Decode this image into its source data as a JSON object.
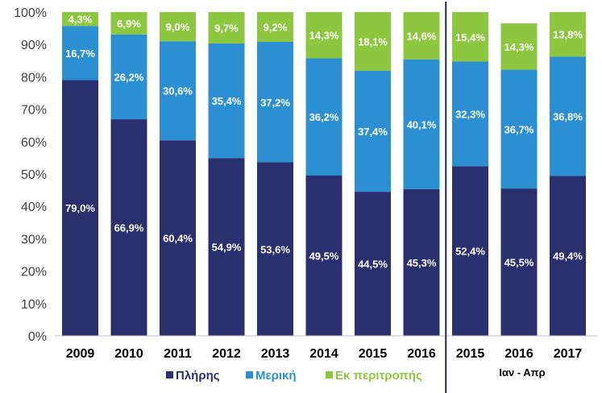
{
  "chart_data": {
    "type": "bar",
    "stacked": true,
    "categories": [
      "2009",
      "2010",
      "2011",
      "2012",
      "2013",
      "2014",
      "2015",
      "2016",
      "2015",
      "2016",
      "2017"
    ],
    "series": [
      {
        "name": "Πλήρης",
        "color": "#2a2f6e",
        "values": [
          79.0,
          66.9,
          60.4,
          54.9,
          53.6,
          49.5,
          44.5,
          45.3,
          52.4,
          45.5,
          49.4
        ],
        "labels": [
          "79,0%",
          "66,9%",
          "60,4%",
          "54,9%",
          "53,6%",
          "49,5%",
          "44,5%",
          "45,3%",
          "52,4%",
          "45,5%",
          "49,4%"
        ]
      },
      {
        "name": "Μερική",
        "color": "#2b8fd1",
        "values": [
          16.7,
          26.2,
          30.6,
          35.4,
          37.2,
          36.2,
          37.4,
          40.1,
          32.3,
          36.7,
          36.8
        ],
        "labels": [
          "16,7%",
          "26,2%",
          "30,6%",
          "35,4%",
          "37,2%",
          "36,2%",
          "37,4%",
          "40,1%",
          "32,3%",
          "36,7%",
          "36,8%"
        ]
      },
      {
        "name": "Εκ περιτροπής",
        "color": "#8dc63f",
        "values": [
          4.3,
          6.9,
          9.0,
          9.7,
          9.2,
          14.3,
          18.1,
          14.6,
          15.4,
          14.3,
          13.8
        ],
        "labels": [
          "4,3%",
          "6,9%",
          "9,0%",
          "9,7%",
          "9,2%",
          "14,3%",
          "18,1%",
          "14,6%",
          "15,4%",
          "14,3%",
          "13,8%"
        ]
      }
    ],
    "ylim": [
      0,
      100
    ],
    "yticks": [
      "0%",
      "10%",
      "20%",
      "30%",
      "40%",
      "50%",
      "60%",
      "70%",
      "80%",
      "90%",
      "100%"
    ],
    "period_label": "Ιαν - Απρ",
    "grid": false,
    "legend_position": "bottom",
    "separator_after_index": 7,
    "separator_color": "#1f2a5c"
  }
}
